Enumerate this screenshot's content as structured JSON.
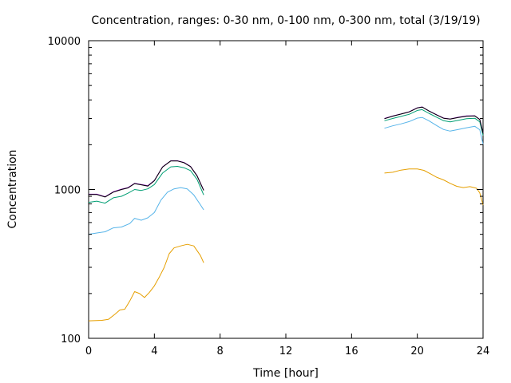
{
  "chart_data": {
    "type": "line",
    "title": "Concentration, ranges: 0-30 nm, 0-100 nm, 0-300 nm, total (3/19/19)",
    "xlabel": "Time [hour]",
    "ylabel": "Concentration",
    "xlim": [
      0,
      24
    ],
    "ylim": [
      100,
      10000
    ],
    "yscale": "log",
    "grid": false,
    "legend": "none",
    "x_ticks": [
      "0",
      "4",
      "8",
      "12",
      "16",
      "20",
      "24"
    ],
    "y_ticks": [
      "100",
      "1000",
      "10000"
    ],
    "series": [
      {
        "color": "#e69f00",
        "segments": [
          [
            [
              0,
              131
            ],
            [
              0.8,
              132
            ],
            [
              1.2,
              134
            ],
            [
              1.6,
              145
            ],
            [
              1.9,
              155
            ],
            [
              2.2,
              157
            ],
            [
              2.5,
              178
            ],
            [
              2.8,
              206
            ],
            [
              3.1,
              200
            ],
            [
              3.4,
              188
            ],
            [
              3.7,
              204
            ],
            [
              4.0,
              225
            ],
            [
              4.3,
              258
            ],
            [
              4.6,
              300
            ],
            [
              4.9,
              370
            ],
            [
              5.2,
              405
            ],
            [
              5.6,
              418
            ],
            [
              6.0,
              428
            ],
            [
              6.4,
              418
            ],
            [
              6.8,
              360
            ],
            [
              7.0,
              322
            ]
          ],
          [
            [
              18.0,
              1290
            ],
            [
              18.5,
              1305
            ],
            [
              19.0,
              1350
            ],
            [
              19.5,
              1375
            ],
            [
              20.0,
              1375
            ],
            [
              20.4,
              1345
            ],
            [
              20.8,
              1275
            ],
            [
              21.2,
              1205
            ],
            [
              21.6,
              1160
            ],
            [
              22.0,
              1100
            ],
            [
              22.4,
              1050
            ],
            [
              22.8,
              1030
            ],
            [
              23.2,
              1045
            ],
            [
              23.6,
              1020
            ],
            [
              23.8,
              950
            ],
            [
              24.0,
              785
            ]
          ]
        ]
      },
      {
        "color": "#56b4e9",
        "segments": [
          [
            [
              0,
              500
            ],
            [
              0.5,
              510
            ],
            [
              1.0,
              520
            ],
            [
              1.5,
              552
            ],
            [
              2.0,
              560
            ],
            [
              2.5,
              590
            ],
            [
              2.8,
              640
            ],
            [
              3.2,
              622
            ],
            [
              3.6,
              645
            ],
            [
              4.0,
              700
            ],
            [
              4.4,
              850
            ],
            [
              4.8,
              960
            ],
            [
              5.2,
              1010
            ],
            [
              5.6,
              1030
            ],
            [
              6.0,
              1010
            ],
            [
              6.4,
              920
            ],
            [
              6.8,
              790
            ],
            [
              7.0,
              730
            ]
          ],
          [
            [
              18.0,
              2580
            ],
            [
              18.5,
              2680
            ],
            [
              19.0,
              2760
            ],
            [
              19.5,
              2860
            ],
            [
              20.0,
              3020
            ],
            [
              20.3,
              3050
            ],
            [
              20.7,
              2900
            ],
            [
              21.2,
              2680
            ],
            [
              21.6,
              2530
            ],
            [
              22.0,
              2470
            ],
            [
              22.5,
              2530
            ],
            [
              23.0,
              2600
            ],
            [
              23.5,
              2660
            ],
            [
              23.8,
              2520
            ],
            [
              24.0,
              2020
            ]
          ]
        ]
      },
      {
        "color": "#009e73",
        "segments": [
          [
            [
              0,
              820
            ],
            [
              0.5,
              835
            ],
            [
              1.0,
              810
            ],
            [
              1.5,
              880
            ],
            [
              2.0,
              900
            ],
            [
              2.4,
              945
            ],
            [
              2.8,
              1000
            ],
            [
              3.2,
              985
            ],
            [
              3.6,
              1010
            ],
            [
              4.0,
              1080
            ],
            [
              4.5,
              1290
            ],
            [
              5.0,
              1420
            ],
            [
              5.4,
              1430
            ],
            [
              5.8,
              1400
            ],
            [
              6.2,
              1340
            ],
            [
              6.6,
              1170
            ],
            [
              7.0,
              920
            ]
          ],
          [
            [
              18.0,
              2900
            ],
            [
              18.5,
              3000
            ],
            [
              19.0,
              3100
            ],
            [
              19.5,
              3200
            ],
            [
              20.0,
              3400
            ],
            [
              20.3,
              3440
            ],
            [
              20.7,
              3250
            ],
            [
              21.2,
              3050
            ],
            [
              21.6,
              2900
            ],
            [
              22.0,
              2850
            ],
            [
              22.5,
              2920
            ],
            [
              23.0,
              2990
            ],
            [
              23.5,
              3010
            ],
            [
              23.8,
              2850
            ],
            [
              24.0,
              2310
            ]
          ]
        ]
      },
      {
        "color": "#9400d3",
        "segments": [
          [
            [
              0,
              930
            ],
            [
              0.5,
              930
            ],
            [
              1.0,
              895
            ],
            [
              1.5,
              965
            ],
            [
              2.0,
              1005
            ],
            [
              2.4,
              1030
            ],
            [
              2.8,
              1100
            ],
            [
              3.2,
              1080
            ],
            [
              3.6,
              1060
            ],
            [
              4.0,
              1150
            ],
            [
              4.5,
              1420
            ],
            [
              5.0,
              1560
            ],
            [
              5.4,
              1560
            ],
            [
              5.8,
              1520
            ],
            [
              6.2,
              1430
            ],
            [
              6.6,
              1240
            ],
            [
              7.0,
              990
            ]
          ],
          [
            [
              18.0,
              3000
            ],
            [
              18.5,
              3120
            ],
            [
              19.0,
              3220
            ],
            [
              19.5,
              3330
            ],
            [
              20.0,
              3540
            ],
            [
              20.3,
              3590
            ],
            [
              20.7,
              3380
            ],
            [
              21.2,
              3170
            ],
            [
              21.6,
              3020
            ],
            [
              22.0,
              2980
            ],
            [
              22.5,
              3060
            ],
            [
              23.0,
              3120
            ],
            [
              23.5,
              3130
            ],
            [
              23.8,
              2960
            ],
            [
              24.0,
              2400
            ]
          ]
        ]
      },
      {
        "color": "#000000",
        "segments": [
          [
            [
              0,
              925
            ],
            [
              0.5,
              925
            ],
            [
              1.0,
              890
            ],
            [
              1.5,
              960
            ],
            [
              2.0,
              1000
            ],
            [
              2.4,
              1025
            ],
            [
              2.8,
              1095
            ],
            [
              3.2,
              1075
            ],
            [
              3.6,
              1055
            ],
            [
              4.0,
              1145
            ],
            [
              4.5,
              1415
            ],
            [
              5.0,
              1555
            ],
            [
              5.4,
              1555
            ],
            [
              5.8,
              1515
            ],
            [
              6.2,
              1425
            ],
            [
              6.6,
              1235
            ],
            [
              7.0,
              985
            ]
          ],
          [
            [
              18.0,
              2990
            ],
            [
              18.5,
              3110
            ],
            [
              19.0,
              3210
            ],
            [
              19.5,
              3320
            ],
            [
              20.0,
              3530
            ],
            [
              20.3,
              3580
            ],
            [
              20.7,
              3370
            ],
            [
              21.2,
              3160
            ],
            [
              21.6,
              3010
            ],
            [
              22.0,
              2970
            ],
            [
              22.5,
              3050
            ],
            [
              23.0,
              3110
            ],
            [
              23.5,
              3120
            ],
            [
              23.8,
              2950
            ],
            [
              24.0,
              2390
            ]
          ]
        ]
      }
    ]
  }
}
